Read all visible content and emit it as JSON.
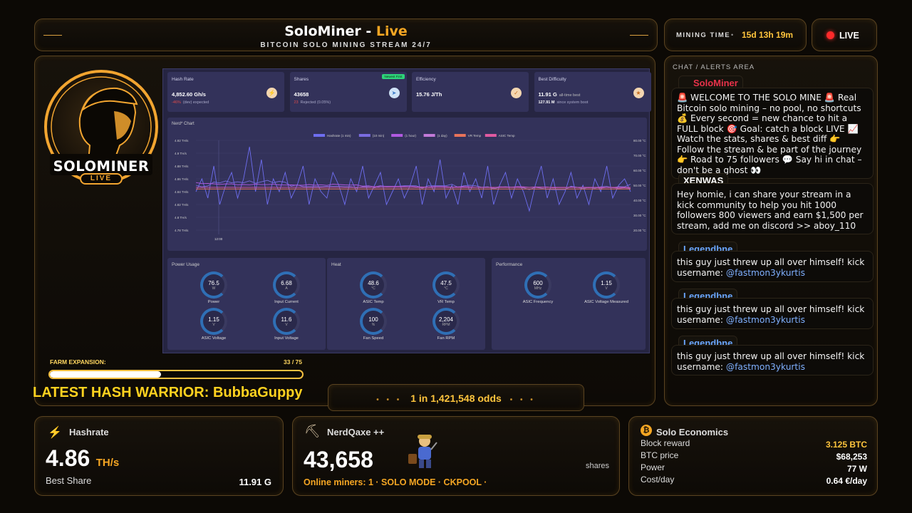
{
  "header": {
    "title_a": "SoloMiner",
    "title_sep": " - ",
    "title_b": "Live",
    "subtitle": "BITCOIN SOLO MINING STREAM 24/7"
  },
  "mining_time": {
    "label": "MINING TIME",
    "value": "15d 13h 19m"
  },
  "live_badge": {
    "label": "LIVE"
  },
  "logo": {
    "line1": "SOLOMINER",
    "line2": "LIVE"
  },
  "dashboard": {
    "cards": [
      {
        "label": "Hash Rate",
        "value": "4,852.60 Gh/s",
        "sub_a": "-46%",
        "sub_b": "(dev) expected",
        "icon": "bolt-icon"
      },
      {
        "label": "Shares",
        "value": "43658",
        "sub_a": "23",
        "sub_b": "Rejected (0.05%)",
        "badge": "Newest First",
        "icon": "send-icon"
      },
      {
        "label": "Efficiency",
        "value": "15.76 J/Th",
        "icon": "check-icon"
      },
      {
        "label": "Best Difficulty",
        "value": "11.91 G",
        "value_suffix": "all-time best",
        "sub_a": "127.91 M",
        "sub_b": "since system boot",
        "icon": "star-icon"
      }
    ],
    "chart_title": "Nerd* Chart",
    "chart_data": {
      "type": "line",
      "legend": [
        "Hashrate (1 min)",
        "(10 min)",
        "(1 hour)",
        "(1 day)",
        "VR Temp",
        "ASIC Temp"
      ],
      "legend_colors": [
        "#6e6ef0",
        "#7a6ce0",
        "#b05ae0",
        "#c27ad8",
        "#e8735a",
        "#e05aa0"
      ],
      "ylabel_left": "TH/s",
      "y_ticks_left": [
        "4.92 TH/s",
        "4.9 TH/s",
        "4.88 TH/s",
        "4.86 TH/s",
        "4.84 TH/s",
        "4.82 TH/s",
        "4.8 TH/s",
        "4.78 TH/s"
      ],
      "y_ticks_right": [
        "80.00 °C",
        "70.00 °C",
        "60.00 °C",
        "50.00 °C",
        "40.00 °C",
        "30.00 °C",
        "20.00 °C"
      ],
      "x_ticks": [
        "12:00"
      ],
      "ylim": [
        4.78,
        4.92
      ],
      "hashrate": [
        4.84,
        4.86,
        4.83,
        4.88,
        4.82,
        4.85,
        4.87,
        4.83,
        4.86,
        4.91,
        4.84,
        4.89,
        4.82,
        4.86,
        4.84,
        4.87,
        4.83,
        4.85,
        4.88,
        4.82,
        4.86,
        4.84,
        4.83,
        4.87,
        4.85,
        4.82,
        4.86,
        4.84,
        4.88,
        4.83,
        4.85,
        4.87,
        4.82,
        4.84,
        4.86,
        4.83,
        4.85,
        4.88,
        4.82,
        4.86,
        4.84,
        4.89,
        4.83,
        4.85,
        4.82,
        4.87,
        4.84,
        4.86,
        4.83,
        4.88,
        4.82,
        4.85,
        4.87,
        4.83,
        4.86,
        4.84,
        4.81,
        4.85,
        4.88,
        4.83,
        4.86,
        4.82,
        4.84,
        4.87,
        4.83,
        4.85,
        4.82,
        4.86,
        4.84,
        4.88,
        4.83,
        4.85,
        4.86,
        4.84
      ],
      "temp_vr": 47.5,
      "temp_asic": 48.6
    },
    "panels": [
      {
        "title": "Power Usage",
        "gauges": [
          {
            "value": "76.5",
            "unit": "W",
            "name": "Power"
          },
          {
            "value": "6.68",
            "unit": "A",
            "name": "Input Current"
          },
          {
            "value": "1.15",
            "unit": "V",
            "name": "ASIC Voltage"
          },
          {
            "value": "11.6",
            "unit": "V",
            "name": "Input Voltage"
          }
        ]
      },
      {
        "title": "Heat",
        "gauges": [
          {
            "value": "48.6",
            "unit": "°C",
            "name": "ASIC Temp"
          },
          {
            "value": "47.5",
            "unit": "°C",
            "name": "VR Temp"
          },
          {
            "value": "100",
            "unit": "%",
            "name": "Fan Speed"
          },
          {
            "value": "2,204",
            "unit": "RPM",
            "name": "Fan RPM"
          }
        ]
      },
      {
        "title": "Performance",
        "gauges": [
          {
            "value": "600",
            "unit": "MHz",
            "name": "ASIC Frequency"
          },
          {
            "value": "1.15",
            "unit": "V",
            "name": "ASIC Voltage Measured"
          }
        ]
      }
    ]
  },
  "farm": {
    "label": "FARM EXPANSION:",
    "count": "33 / 75",
    "progress": 0.44
  },
  "warrior": {
    "text": "LATEST HASH WARRIOR: BubbaGuppy"
  },
  "odds": {
    "dots_left": "• • •",
    "text": "1 in 1,421,548 odds",
    "dots_right": "• • •"
  },
  "chat": {
    "header": "CHAT / ALERTS AREA",
    "messages": [
      {
        "user": "SoloMiner",
        "user_color": "#e8324a",
        "text": "🚨 WELCOME TO THE SOLO MINE 🚨 Real Bitcoin solo mining – no pool, no shortcuts 💰 Every second = new chance to hit a FULL block 🎯 Goal: catch a block LIVE 📈 Watch the stats, shares & best diff 👉 Follow the stream & be part of the journey 👉 Road to 75 followers 💬 Say hi in chat – don't be a ghost 👀"
      },
      {
        "user": "XENWAS",
        "user_color": "#ffffff",
        "text": "Hey homie, i can share your stream in a kick community to help you hit 1000 followers 800 viewers and earn $1,500 per stream, add me on discord >> aboy_110"
      },
      {
        "user": "Legendbne",
        "user_color": "#6aa6ff",
        "text": "this guy just threw up all over himself! kick username: ",
        "mention": "@fastmon3ykurtis"
      },
      {
        "user": "Legendbne",
        "user_color": "#6aa6ff",
        "text": "this guy just threw up all over himself! kick username: ",
        "mention": "@fastmon3ykurtis"
      },
      {
        "user": "Legendbne",
        "user_color": "#6aa6ff",
        "text": "this guy just threw up all over himself! kick username: ",
        "mention": "@fastmon3ykurtis"
      }
    ]
  },
  "hashrate_box": {
    "title": "Hashrate",
    "value": "4.86",
    "unit": "TH/s",
    "label": "Best Share",
    "best": "11.91 G"
  },
  "miner_box": {
    "title": "NerdQaxe ++",
    "value": "43,658",
    "unit": "shares",
    "footer": "Online miners: 1 · SOLO MODE · CKPOOL ·"
  },
  "economics": {
    "title": "Solo Economics",
    "rows": [
      {
        "k": "Block reward",
        "v": "3.125 BTC"
      },
      {
        "k": "BTC price",
        "v": "$68,253"
      },
      {
        "k": "Power",
        "v": "77 W"
      },
      {
        "k": "Cost/day",
        "v": "0.64 €/day"
      }
    ]
  },
  "colors": {
    "accent": "#f5a623",
    "gold": "#ffc53d",
    "warrior": "#ffd21f"
  }
}
